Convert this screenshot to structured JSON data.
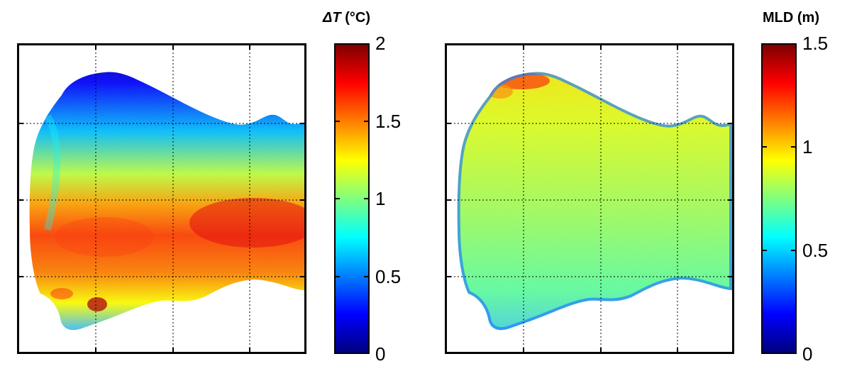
{
  "colormap": {
    "name": "jet",
    "stops": [
      "#00007f",
      "#0000ff",
      "#007fff",
      "#00ffff",
      "#7fff7f",
      "#ffff00",
      "#ff7f00",
      "#ff0000",
      "#7f0000"
    ]
  },
  "chart_data": [
    {
      "type": "heatmap",
      "title": "",
      "colorbar": {
        "label_italic": "ΔT",
        "label_rest": " (°C)",
        "range": [
          0,
          2
        ],
        "ticks": [
          "0",
          "0.5",
          "1",
          "1.5",
          "2"
        ],
        "tick_values": [
          0,
          0.5,
          1,
          1.5,
          2
        ]
      },
      "grid": true,
      "field_description_levels": {
        "north_shore": 0.1,
        "central_band": 1.75,
        "south_margin": 1.3
      }
    },
    {
      "type": "heatmap",
      "title": "",
      "colorbar": {
        "label_italic": "",
        "label_rest": "MLD (m)",
        "range": [
          0,
          1.5
        ],
        "ticks": [
          "0",
          "0.5",
          "1",
          "1.5"
        ],
        "tick_values": [
          0,
          0.5,
          1,
          1.5
        ]
      },
      "grid": true,
      "field_description_levels": {
        "interior": 0.85,
        "north_shore": 1.4,
        "south_edge": 0.55
      }
    }
  ]
}
